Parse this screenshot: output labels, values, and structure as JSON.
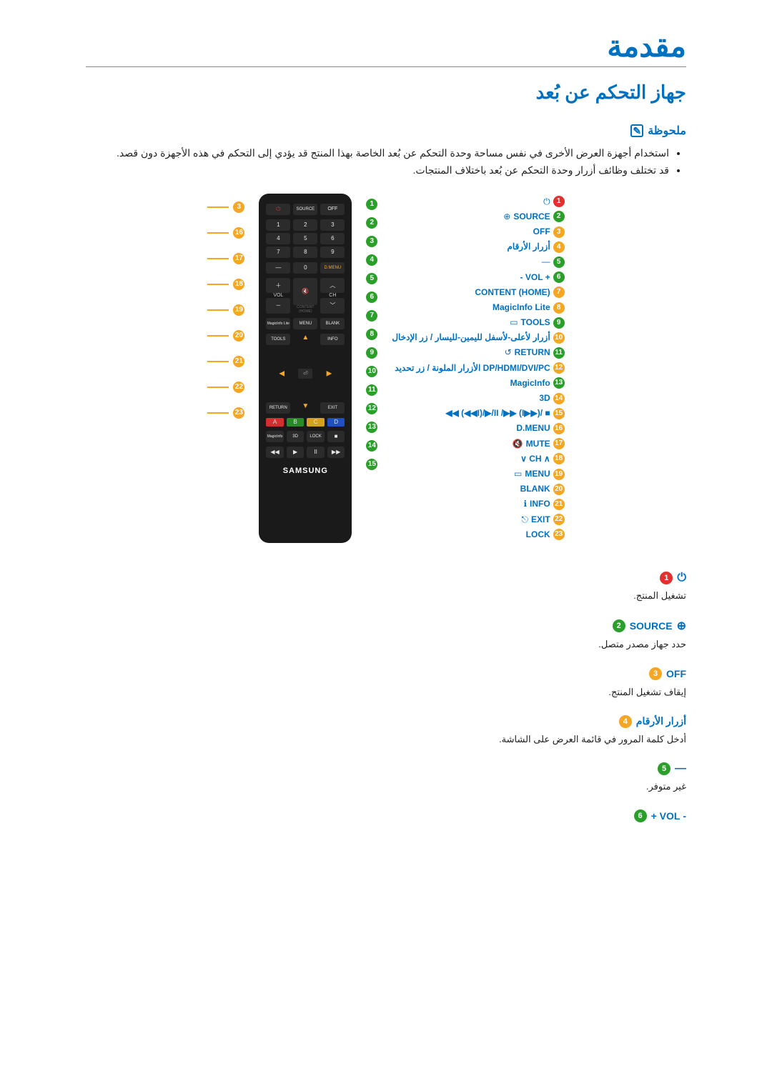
{
  "page": {
    "title": "مقدمة",
    "section_title": "جهاز التحكم عن بُعد"
  },
  "note": {
    "label": "ملحوظة",
    "items": [
      "استخدام أجهزة العرض الأخرى في نفس مساحة وحدة التحكم عن بُعد الخاصة بهذا المنتج قد يؤدي إلى التحكم في هذه الأجهزة دون قصد.",
      "قد تختلف وظائف أزرار وحدة التحكم عن بُعد باختلاف المنتجات."
    ]
  },
  "badge_colors": {
    "1": "#e03030",
    "2": "#2aa02a",
    "3": "#f5a623",
    "4": "#f5a623",
    "5": "#2aa02a",
    "6": "#2aa02a",
    "7": "#f5a623",
    "8": "#f5a623",
    "9": "#2aa02a",
    "10": "#f5a623",
    "11": "#2aa02a",
    "12": "#f5a623",
    "13": "#2aa02a",
    "14": "#f5a623",
    "15": "#f5a623",
    "16": "#f5a623",
    "17": "#f5a623",
    "18": "#f5a623",
    "19": "#f5a623",
    "20": "#f5a623",
    "21": "#f5a623",
    "22": "#f5a623",
    "23": "#f5a623"
  },
  "labels": [
    {
      "num": "1",
      "text": "",
      "icon": "⏻"
    },
    {
      "num": "2",
      "text": "SOURCE",
      "icon": "⊕"
    },
    {
      "num": "3",
      "text": "OFF",
      "icon": ""
    },
    {
      "num": "4",
      "text": "أزرار الأرقام",
      "icon": ""
    },
    {
      "num": "5",
      "text": "",
      "icon": "—"
    },
    {
      "num": "6",
      "text": "- VOL +",
      "icon": ""
    },
    {
      "num": "7",
      "text": "CONTENT (HOME)",
      "icon": ""
    },
    {
      "num": "8",
      "text": "MagicInfo Lite",
      "icon": ""
    },
    {
      "num": "9",
      "text": "TOOLS",
      "icon": "▭"
    },
    {
      "num": "10",
      "text": "أزرار لأعلى-لأسفل لليمين-لليسار / زر الإدخال",
      "icon": ""
    },
    {
      "num": "11",
      "text": "RETURN",
      "icon": "↺"
    },
    {
      "num": "12",
      "text": "الأزرار الملونة / زر تحديد DP/HDMI/DVI/PC",
      "icon": ""
    },
    {
      "num": "13",
      "text": "MagicInfo",
      "icon": ""
    },
    {
      "num": "14",
      "text": "3D",
      "icon": ""
    },
    {
      "num": "15",
      "text": "◀◀ (◀◀I)/▶/II /▶▶ (I▶▶)/ ■",
      "icon": ""
    },
    {
      "num": "16",
      "text": "D.MENU",
      "icon": ""
    },
    {
      "num": "17",
      "text": "MUTE",
      "icon": "🔇"
    },
    {
      "num": "18",
      "text": "∨ CH ∧",
      "icon": ""
    },
    {
      "num": "19",
      "text": "MENU",
      "icon": "▭"
    },
    {
      "num": "20",
      "text": "BLANK",
      "icon": ""
    },
    {
      "num": "21",
      "text": "INFO",
      "icon": "ℹ"
    },
    {
      "num": "22",
      "text": "EXIT",
      "icon": "⎋"
    },
    {
      "num": "23",
      "text": "LOCK",
      "icon": ""
    }
  ],
  "right_callouts": [
    "3",
    "16",
    "17",
    "18",
    "19",
    "20",
    "21",
    "22",
    "23"
  ],
  "mid_callouts": [
    "1",
    "2",
    "3",
    "4",
    "5",
    "6",
    "7",
    "8",
    "9",
    "10",
    "11",
    "12",
    "13",
    "14",
    "15"
  ],
  "remote": {
    "brand": "SAMSUNG",
    "top_row": {
      "power": "⏻",
      "source": "SOURCE",
      "off": "OFF"
    },
    "numbers": [
      [
        "1",
        "2",
        "3"
      ],
      [
        "4",
        "5",
        "6"
      ],
      [
        "7",
        "8",
        "9"
      ]
    ],
    "zero_row": {
      "dash": "—",
      "zero": "0",
      "dmenu": "D.MENU"
    },
    "vol_ch": {
      "vol_up": "＋",
      "vol": "VOL",
      "vol_down": "－",
      "mute": "🔇",
      "ch_up": "︿",
      "ch": "CH",
      "ch_down": "﹀",
      "content": "CONTENT (HOME)"
    },
    "mid_row": {
      "magic": "MagicInfo Lite",
      "menu": "MENU",
      "blank": "BLANK"
    },
    "tools_row": {
      "tools": "TOOLS",
      "info": "INFO"
    },
    "return_row": {
      "return": "RETURN",
      "exit": "EXIT"
    },
    "color_row": {
      "a": "A",
      "b": "B",
      "c": "C",
      "d": "D"
    },
    "extras_row": {
      "magicinfo": "MagicInfo",
      "threed": "3D",
      "lock": "LOCK",
      "stop": "■"
    },
    "play_row": {
      "rew": "◀◀",
      "play": "▶",
      "pause": "II",
      "fwd": "▶▶"
    }
  },
  "descriptions": [
    {
      "num": "1",
      "head_text": "",
      "head_icon": "⏻",
      "body": "تشغيل المنتج."
    },
    {
      "num": "2",
      "head_text": "SOURCE",
      "head_icon": "⊕",
      "body": "حدد جهاز مصدر متصل."
    },
    {
      "num": "3",
      "head_text": "OFF",
      "head_icon": "",
      "body": "إيقاف تشغيل المنتج."
    },
    {
      "num": "4",
      "head_text": "أزرار الأرقام",
      "head_icon": "",
      "body": "أدخل كلمة المرور في قائمة العرض على الشاشة."
    },
    {
      "num": "5",
      "head_text": "",
      "head_icon": "—",
      "body": "غير متوفر."
    },
    {
      "num": "6",
      "head_text": "- VOL +",
      "head_icon": "",
      "body": ""
    }
  ]
}
